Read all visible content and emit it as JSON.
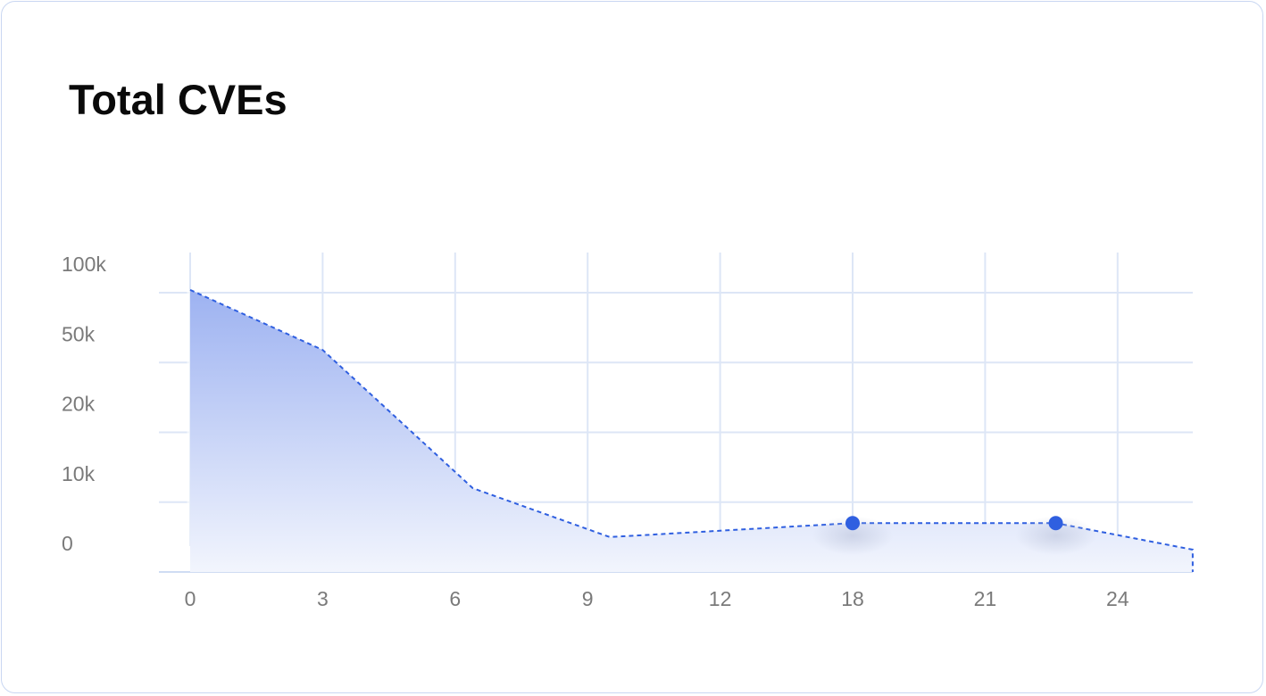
{
  "chart_data": {
    "type": "area",
    "title": "Total CVEs",
    "x": [
      0,
      3,
      6.4,
      9.5,
      18,
      22.6,
      25.7
    ],
    "values": [
      102000,
      59000,
      12000,
      5000,
      7000,
      7000,
      3200
    ],
    "color": "#2f5fe0",
    "xlim": [
      -0.7,
      25.7
    ],
    "xticks": [
      0,
      3,
      6,
      9,
      12,
      18,
      21,
      24
    ],
    "ylim": [
      0,
      100000
    ],
    "yticks": [
      0,
      {
        "value": 10000,
        "label": "10k"
      },
      {
        "value": 20000,
        "label": "20k"
      },
      {
        "value": 50000,
        "label": "50k"
      },
      {
        "value": 100000,
        "label": "100k"
      }
    ],
    "grid": true
  }
}
